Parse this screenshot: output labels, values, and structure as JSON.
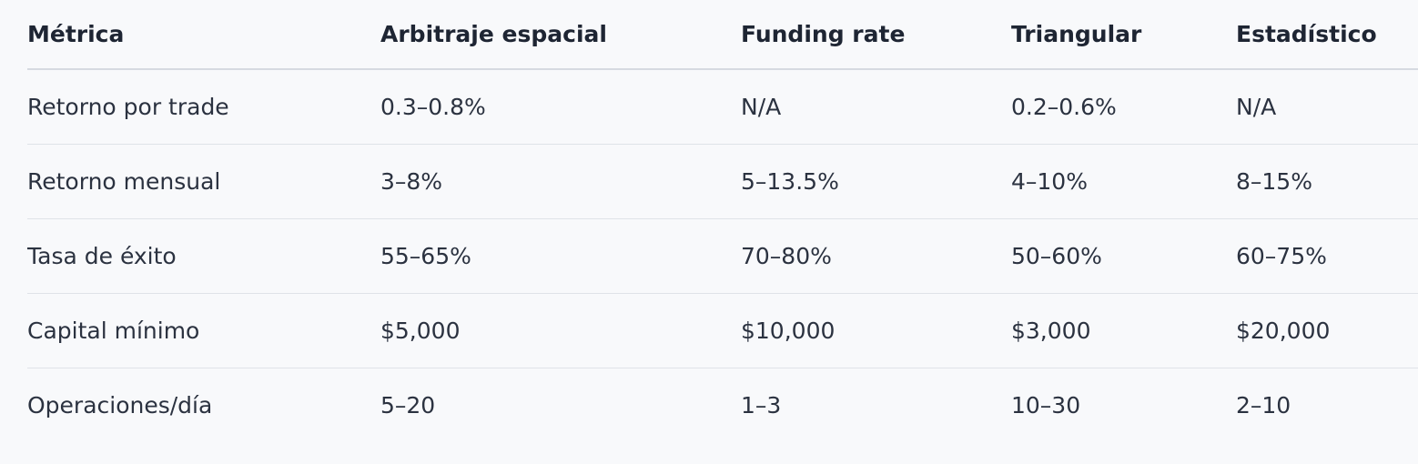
{
  "table": {
    "header": [
      "Métrica",
      "Arbitraje espacial",
      "Funding rate",
      "Triangular",
      "Estadístico"
    ],
    "rows": [
      [
        "Retorno por trade",
        "0.3–0.8%",
        "N/A",
        "0.2–0.6%",
        "N/A"
      ],
      [
        "Retorno mensual",
        "3–8%",
        "5–13.5%",
        "4–10%",
        "8–15%"
      ],
      [
        "Tasa de éxito",
        "55–65%",
        "70–80%",
        "50–60%",
        "60–75%"
      ],
      [
        "Capital mínimo",
        "$5,000",
        "$10,000",
        "$3,000",
        "$20,000"
      ],
      [
        "Operaciones/día",
        "5–20",
        "1–3",
        "10–30",
        "2–10"
      ]
    ]
  }
}
